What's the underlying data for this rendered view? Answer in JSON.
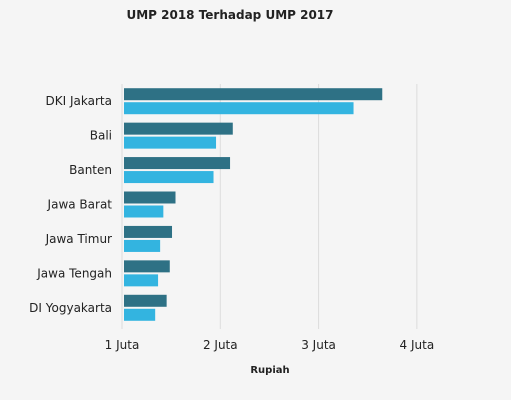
{
  "chart_data": {
    "type": "bar",
    "orientation": "horizontal",
    "title": "UMP 2018 Terhadap UMP 2017",
    "xlabel": "Rupiah",
    "ylabel": "",
    "categories": [
      "DKI Jakarta",
      "Bali",
      "Banten",
      "Jawa Barat",
      "Jawa Timur",
      "Jawa Tengah",
      "DI Yogyakarta"
    ],
    "series": [
      {
        "color": "#2e7185",
        "values": [
          3648035,
          2127157,
          2099385,
          1544361,
          1508895,
          1486065,
          1454154
        ]
      },
      {
        "color": "#33b4e0",
        "values": [
          3355750,
          1956727,
          1931180,
          1420624,
          1388000,
          1367000,
          1337645
        ]
      }
    ],
    "xlim": [
      1000000,
      4500000
    ],
    "xticks": [
      1000000,
      2000000,
      3000000,
      4000000
    ],
    "xtick_labels": [
      "1 Juta",
      "2 Juta",
      "3 Juta",
      "4 Juta"
    ],
    "grid": true,
    "legend": "none"
  }
}
